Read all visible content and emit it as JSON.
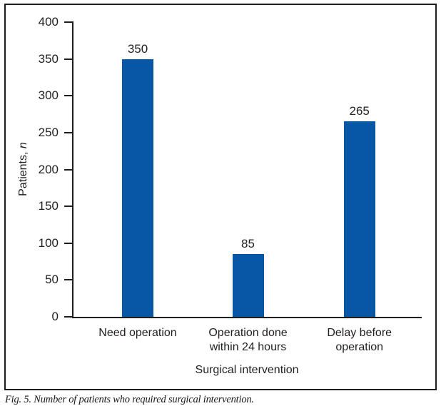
{
  "caption": "Fig. 5. Number of patients who required surgical intervention.",
  "chart": {
    "y_title_main": "Patients, ",
    "y_title_italic": "n",
    "category_lines": [
      [
        "Need operation"
      ],
      [
        "Operation done",
        "within 24 hours"
      ],
      [
        "Delay before",
        "operation"
      ]
    ]
  },
  "chart_data": {
    "type": "bar",
    "title": "",
    "categories": [
      "Need operation",
      "Operation done within 24 hours",
      "Delay before operation"
    ],
    "values": [
      350,
      85,
      265
    ],
    "xlabel": "Surgical intervention",
    "ylabel": "Patients, n",
    "ylim": [
      0,
      400
    ],
    "yticks": [
      0,
      50,
      100,
      150,
      200,
      250,
      300,
      350,
      400
    ],
    "bar_color": "#0857a6",
    "axis_color": "#1d1d1b",
    "grid": false,
    "legend": false,
    "value_labels_shown": true
  }
}
